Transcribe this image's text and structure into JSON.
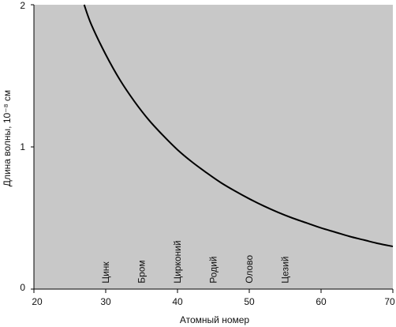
{
  "chart_data": {
    "type": "line",
    "title": "",
    "xlabel": "Атомный номер",
    "ylabel": "Длина волны, 10⁻⁸ см",
    "xlim": [
      20,
      70
    ],
    "ylim": [
      0,
      2
    ],
    "x_ticks": [
      20,
      30,
      40,
      50,
      60,
      70
    ],
    "x_tick_labels": [
      "20",
      "30",
      "40",
      "50",
      "60",
      "70"
    ],
    "y_ticks": [
      0,
      1,
      2
    ],
    "y_tick_labels": [
      "0",
      "1",
      "2"
    ],
    "grid": false,
    "legend": "none",
    "colors": {
      "plot_background": "#c8c8c8",
      "line": "#000000",
      "frame": "#000000",
      "page_background": "#ffffff"
    },
    "series": [
      {
        "x": [
          27,
          28,
          30,
          32,
          34,
          36,
          38,
          40,
          42,
          44,
          46,
          48,
          50,
          52,
          54,
          56,
          58,
          60,
          62,
          64,
          66,
          68,
          70
        ],
        "y": [
          2.0,
          1.86,
          1.65,
          1.47,
          1.32,
          1.19,
          1.08,
          0.98,
          0.895,
          0.82,
          0.75,
          0.69,
          0.635,
          0.585,
          0.54,
          0.5,
          0.465,
          0.43,
          0.4,
          0.37,
          0.345,
          0.32,
          0.3
        ]
      }
    ],
    "annotations": [
      {
        "text": "Цинк",
        "x": 30,
        "y": 0.04
      },
      {
        "text": "Бром",
        "x": 35,
        "y": 0.04
      },
      {
        "text": "Цирконий",
        "x": 40,
        "y": 0.04
      },
      {
        "text": "Родий",
        "x": 45,
        "y": 0.04
      },
      {
        "text": "Олово",
        "x": 50,
        "y": 0.04
      },
      {
        "text": "Цезий",
        "x": 55,
        "y": 0.04
      }
    ]
  }
}
